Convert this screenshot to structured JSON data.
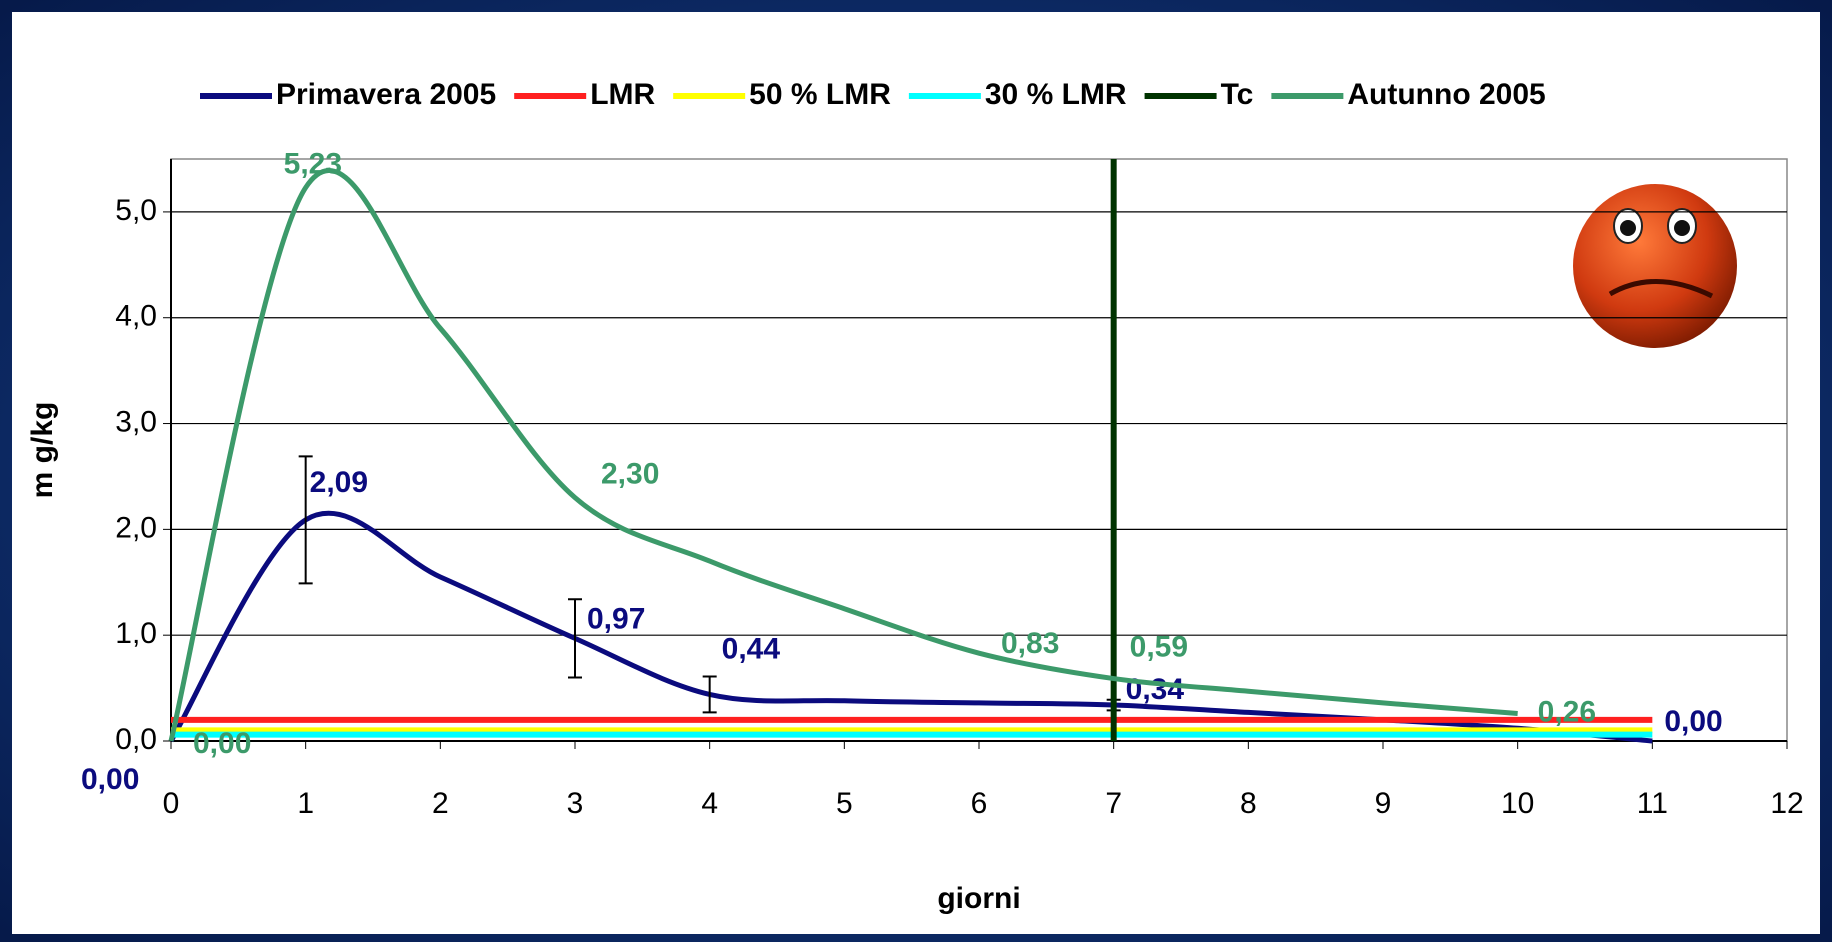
{
  "chart_data": {
    "type": "line",
    "x_label": "giorni",
    "y_label": "m g/kg",
    "xlim": [
      0,
      12
    ],
    "xticks": [
      0,
      1,
      2,
      3,
      4,
      5,
      6,
      7,
      8,
      9,
      10,
      11,
      12
    ],
    "ylim": [
      0,
      5.5
    ],
    "yticks": [
      {
        "value": 0,
        "label": "0,0"
      },
      {
        "value": 1,
        "label": "1,0"
      },
      {
        "value": 2,
        "label": "2,0"
      },
      {
        "value": 3,
        "label": "3,0"
      },
      {
        "value": 4,
        "label": "4,0"
      },
      {
        "value": 5,
        "label": "5,0"
      }
    ],
    "grid": true,
    "legend": "top",
    "series": [
      {
        "name": "Primavera 2005",
        "color": "#0b0b7e",
        "smooth": true,
        "x": [
          0,
          1,
          2,
          3,
          4,
          5,
          6,
          7,
          8,
          9,
          10,
          11
        ],
        "values": [
          0,
          2.09,
          1.55,
          0.97,
          0.44,
          0.38,
          0.36,
          0.34,
          0.27,
          0.2,
          0.12,
          0
        ],
        "errors": [
          null,
          0.6,
          null,
          0.37,
          0.17,
          null,
          null,
          0.05,
          null,
          null,
          null,
          null
        ],
        "value_labels": [
          "0,00",
          "2,09",
          null,
          "0,97",
          "0,44",
          null,
          null,
          "0,34",
          null,
          null,
          null,
          "0,00"
        ]
      },
      {
        "name": "LMR",
        "color": "#ff2020",
        "x": [
          0,
          11
        ],
        "values": [
          0.2,
          0.2
        ]
      },
      {
        "name": "50 % LMR",
        "color": "#ffff00",
        "x": [
          0,
          11
        ],
        "values": [
          0.1,
          0.1
        ]
      },
      {
        "name": "30 % LMR",
        "color": "#00ffff",
        "x": [
          0,
          11
        ],
        "values": [
          0.06,
          0.06
        ]
      },
      {
        "name": "Tc",
        "color": "#003300",
        "x": [
          7,
          7
        ],
        "values": [
          0,
          5.5
        ]
      },
      {
        "name": "Autunno 2005",
        "color": "#3c9a6a",
        "smooth": true,
        "x": [
          0,
          1,
          2,
          3,
          4,
          5,
          6,
          7,
          8,
          9,
          10
        ],
        "values": [
          0,
          5.23,
          3.9,
          2.3,
          1.7,
          1.25,
          0.83,
          0.59,
          0.47,
          0.36,
          0.26
        ],
        "value_labels": [
          "0,00",
          "5,23",
          null,
          "2,30",
          null,
          null,
          "0,83",
          "0,59",
          null,
          null,
          "0,26"
        ]
      }
    ]
  }
}
